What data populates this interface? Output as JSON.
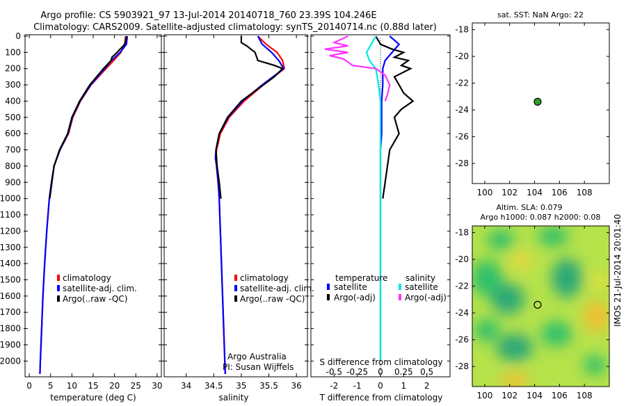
{
  "header": {
    "title_line1": "Argo profile: CS 5903921_97 13-Jul-2014 20140718_760 23.39S 104.246E",
    "title_line2": "Climatology: CARS2009. Satellite-adjusted climatology: synTS_20140714.nc (0.88d later)"
  },
  "colors": {
    "climatology": "#ff0000",
    "satellite": "#0000ff",
    "argo": "#000000",
    "salinity_satellite": "#00e5e5",
    "salinity_argo": "#ff33ff",
    "argo_marker": "#2ca02c"
  },
  "chart_data": [
    {
      "type": "line",
      "xlabel": "temperature (deg C)",
      "ylabel": "",
      "xlim": [
        -1,
        31
      ],
      "ylim": [
        2080,
        0
      ],
      "xticks": [
        "0",
        "5",
        "10",
        "15",
        "20",
        "25",
        "30"
      ],
      "yticks": [
        "0",
        "100",
        "200",
        "300",
        "400",
        "500",
        "600",
        "700",
        "800",
        "900",
        "1000",
        "1100",
        "1200",
        "1300",
        "1400",
        "1500",
        "1600",
        "1700",
        "1800",
        "1900",
        "2000"
      ],
      "legend": [
        "climatology",
        "satellite-adj. clim.",
        "Argo(..raw -QC)"
      ],
      "series": [
        {
          "name": "climatology",
          "depth": [
            0,
            50,
            100,
            150,
            200,
            300,
            400,
            500,
            600,
            700,
            800,
            900,
            1000,
            1200,
            1400,
            1600,
            1800,
            2000,
            2080
          ],
          "values": [
            22.6,
            22.4,
            21.5,
            19.8,
            18.0,
            14.5,
            12.0,
            10.2,
            9.2,
            7.2,
            5.8,
            5.2,
            4.7,
            4.1,
            3.6,
            3.2,
            2.9,
            2.6,
            2.5
          ]
        },
        {
          "name": "satellite-adj. clim.",
          "depth": [
            0,
            50,
            100,
            150,
            200,
            300,
            400,
            500,
            600,
            700,
            800,
            900,
            1000,
            1200,
            1400,
            1600,
            1800,
            2000,
            2080
          ],
          "values": [
            23.0,
            22.8,
            21.3,
            19.3,
            17.7,
            14.4,
            11.9,
            10.1,
            9.1,
            7.2,
            5.8,
            5.2,
            4.7,
            4.1,
            3.6,
            3.2,
            2.9,
            2.6,
            2.5
          ]
        },
        {
          "name": "Argo(..raw -QC)",
          "depth": [
            0,
            20,
            50,
            100,
            130,
            150,
            200,
            300,
            400,
            500,
            600,
            700,
            800,
            900,
            1000
          ],
          "values": [
            22.8,
            22.7,
            22.4,
            20.6,
            19.4,
            19.2,
            17.4,
            14.2,
            11.8,
            10.0,
            9.0,
            7.1,
            5.8,
            5.3,
            4.8
          ]
        }
      ]
    },
    {
      "type": "line",
      "xlabel": "salinity",
      "ylabel": "",
      "xlim": [
        33.6,
        36.2
      ],
      "ylim": [
        2080,
        0
      ],
      "xticks": [
        "34",
        "34.5",
        "35",
        "35.5",
        "36"
      ],
      "legend": [
        "climatology",
        "satellite-adj. clim.",
        "Argo(..raw -QC)"
      ],
      "annotation_1": "Argo Australia",
      "annotation_2": "PI: Susan Wijffels",
      "series": [
        {
          "name": "climatology",
          "depth": [
            0,
            50,
            100,
            150,
            200,
            300,
            400,
            500,
            600,
            700,
            750,
            800,
            900,
            1000,
            1200,
            1400,
            1600,
            1800,
            2000,
            2080
          ],
          "values": [
            35.3,
            35.45,
            35.65,
            35.75,
            35.78,
            35.4,
            35.05,
            34.78,
            34.62,
            34.55,
            34.54,
            34.55,
            34.58,
            34.6,
            34.62,
            34.64,
            34.66,
            34.68,
            34.7,
            34.71
          ]
        },
        {
          "name": "satellite-adj. clim.",
          "depth": [
            0,
            50,
            100,
            150,
            200,
            300,
            400,
            500,
            600,
            700,
            750,
            800,
            900,
            1000,
            1200,
            1400,
            1600,
            1800,
            2000,
            2080
          ],
          "values": [
            35.3,
            35.38,
            35.55,
            35.68,
            35.77,
            35.38,
            35.02,
            34.76,
            34.6,
            34.54,
            34.53,
            34.55,
            34.58,
            34.6,
            34.62,
            34.64,
            34.66,
            34.68,
            34.7,
            34.71
          ]
        },
        {
          "name": "Argo(..raw -QC)",
          "depth": [
            0,
            40,
            60,
            100,
            150,
            180,
            200,
            250,
            300,
            400,
            500,
            600,
            700,
            800,
            900,
            1000
          ],
          "values": [
            35.0,
            35.0,
            35.1,
            35.25,
            35.3,
            35.6,
            35.75,
            35.6,
            35.4,
            35.0,
            34.75,
            34.6,
            34.54,
            34.56,
            34.6,
            34.63
          ]
        }
      ]
    },
    {
      "type": "line",
      "xlabel": "T difference from climatology",
      "xlabel_secondary": "S difference from climatology",
      "xlim": [
        -3,
        3
      ],
      "ylim": [
        2080,
        0
      ],
      "xticks": [
        "-2",
        "-1",
        "0",
        "1",
        "2"
      ],
      "xticks_secondary": [
        "-0.5",
        "-0.25",
        "0",
        "0.25",
        "0.5"
      ],
      "legend_temperature": "temperature",
      "legend_salinity": "salinity",
      "legend": [
        "satellite",
        "Argo(-adj)",
        "satellite",
        "Argo(-adj)"
      ],
      "series": [
        {
          "name": "satellite",
          "depth": [
            0,
            50,
            100,
            150,
            200,
            300,
            400,
            500,
            600,
            700,
            800,
            900,
            1000,
            1200,
            1500,
            1800,
            2000
          ],
          "values": [
            0.4,
            0.8,
            0.5,
            0.2,
            0.1,
            0.1,
            0.05,
            0.05,
            0.05,
            0.0,
            0.0,
            0.0,
            0.0,
            0.0,
            0.0,
            0.0,
            0.0
          ]
        },
        {
          "name": "Argo(-adj)",
          "depth": [
            0,
            50,
            80,
            100,
            130,
            150,
            180,
            200,
            250,
            300,
            350,
            400,
            450,
            500,
            600,
            700,
            800,
            900,
            1000
          ],
          "values": [
            -0.2,
            0.0,
            0.5,
            1.0,
            0.6,
            1.2,
            0.9,
            1.3,
            0.6,
            0.8,
            1.0,
            1.4,
            0.9,
            0.6,
            0.8,
            0.4,
            0.3,
            0.2,
            0.1
          ]
        },
        {
          "name": "satellite",
          "depth": [
            0,
            50,
            100,
            150,
            200,
            300,
            400,
            500,
            600,
            800,
            1000,
            1500,
            2000
          ],
          "values": [
            -0.05,
            -0.1,
            -0.15,
            -0.12,
            -0.05,
            -0.02,
            0.0,
            0.0,
            0.0,
            0.0,
            0.0,
            0.0,
            0.0
          ]
        },
        {
          "name": "Argo(-adj)",
          "depth": [
            0,
            40,
            60,
            80,
            100,
            120,
            140,
            160,
            180,
            200,
            240,
            300,
            350,
            400
          ],
          "values": [
            -0.35,
            -0.5,
            -0.35,
            -0.6,
            -0.35,
            -0.55,
            -0.4,
            -0.35,
            -0.3,
            -0.05,
            0.05,
            0.1,
            0.08,
            0.05
          ]
        }
      ]
    },
    {
      "type": "scatter",
      "title": "sat. SST: NaN Argo: 22",
      "xlim": [
        99,
        110
      ],
      "ylim": [
        -29.5,
        -17.5
      ],
      "xticks": [
        "100",
        "102",
        "104",
        "106",
        "108"
      ],
      "yticks": [
        "-18",
        "-20",
        "-22",
        "-24",
        "-26",
        "-28"
      ],
      "points": [
        {
          "x": 104.246,
          "y": -23.39
        }
      ]
    },
    {
      "type": "heatmap",
      "title_line1": "Altim. SLA: 0.079",
      "title_line2": "Argo h1000: 0.087 h2000: 0.08",
      "xlim": [
        99,
        110
      ],
      "ylim": [
        -29.5,
        -17.5
      ],
      "xticks": [
        "100",
        "102",
        "104",
        "106",
        "108"
      ],
      "yticks": [
        "-18",
        "-20",
        "-22",
        "-24",
        "-26",
        "-28"
      ],
      "points": [
        {
          "x": 104.246,
          "y": -23.39
        }
      ],
      "side_label": "IMOS 21-Jul-2014 20:01:40"
    }
  ]
}
